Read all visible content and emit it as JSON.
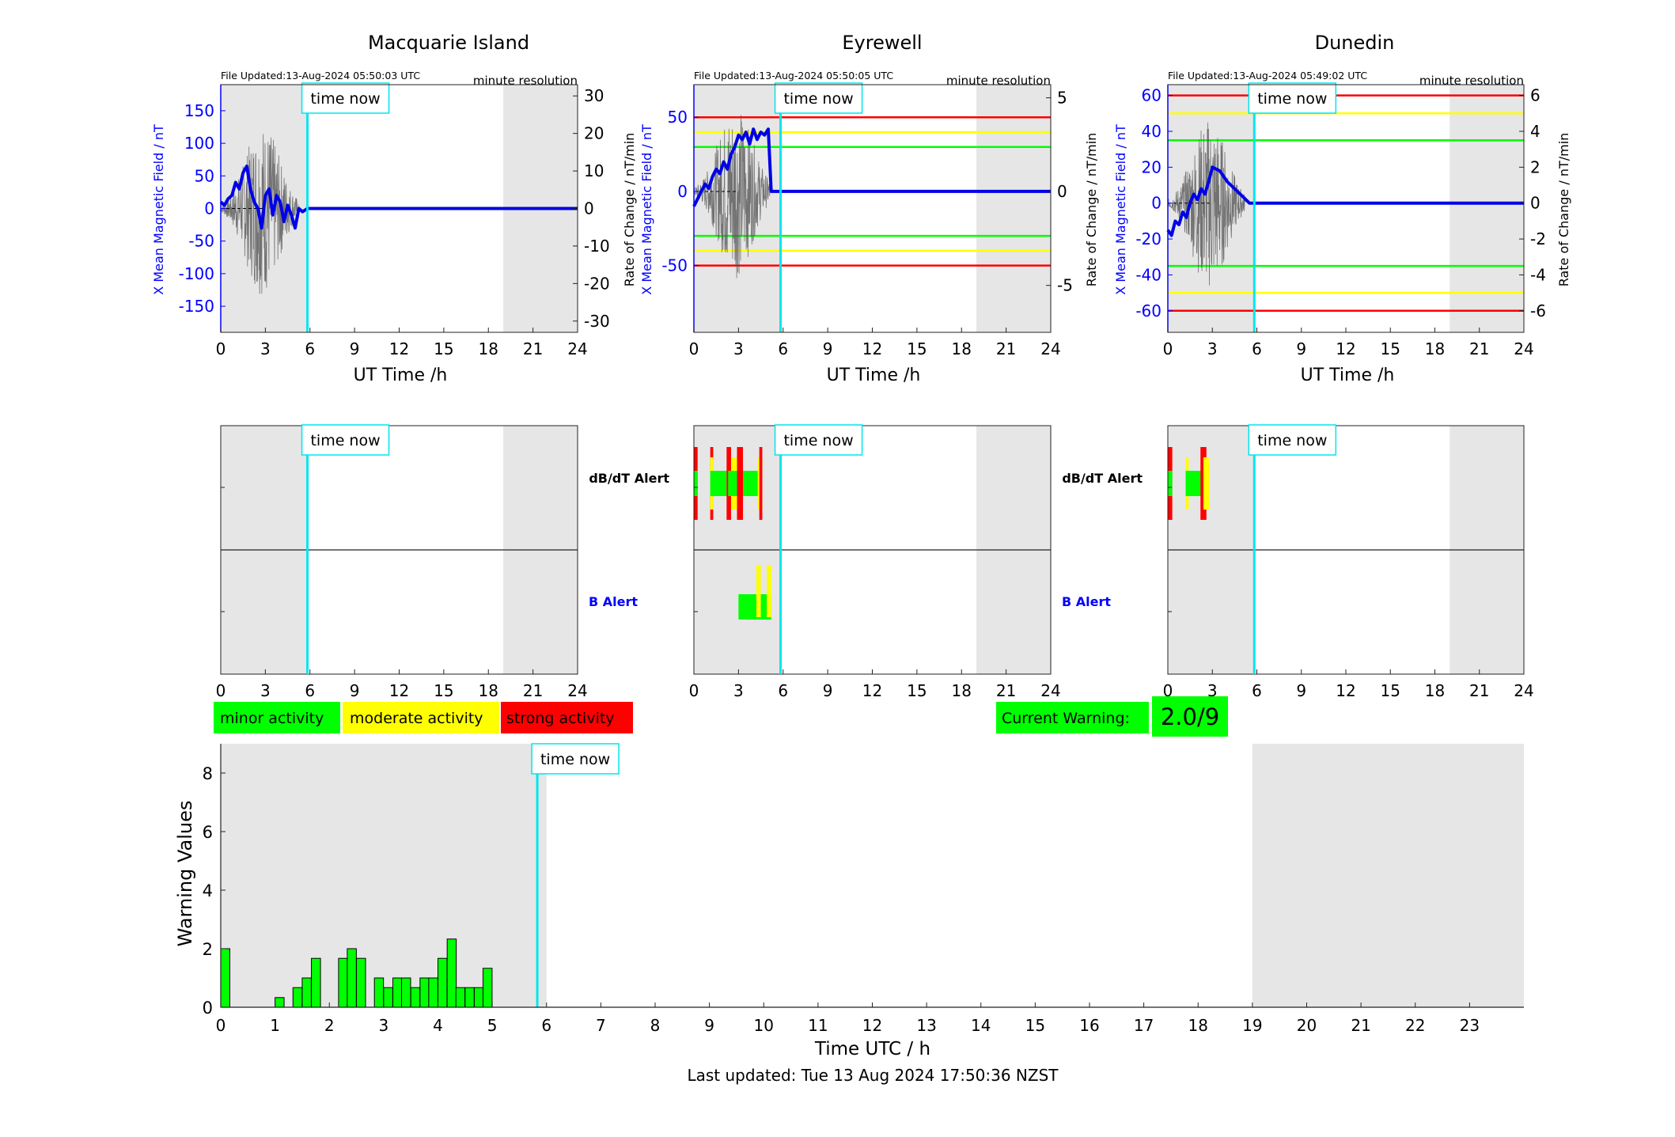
{
  "stations": [
    {
      "name": "Macquarie Island",
      "file_updated": "File Updated:13-Aug-2024 05:50:03 UTC",
      "resolution": "minute resolution",
      "left_axis_label": "X Mean Magnetic Field / nT",
      "right_axis_label": "Rate of Change / nT/min",
      "xlabel": "UT Time /h",
      "time_now_label": "time now"
    },
    {
      "name": "Eyrewell",
      "file_updated": "File Updated:13-Aug-2024 05:50:05 UTC",
      "resolution": "minute resolution",
      "left_axis_label": "X Mean Magnetic Field / nT",
      "right_axis_label": "Rate of Change / nT/min",
      "xlabel": "UT Time /h",
      "time_now_label": "time now"
    },
    {
      "name": "Dunedin",
      "file_updated": "File Updated:13-Aug-2024 05:49:02 UTC",
      "resolution": "minute resolution",
      "left_axis_label": "X Mean Magnetic Field / nT",
      "right_axis_label": "Rate of Change / nT/min",
      "xlabel": "UT Time /h",
      "time_now_label": "time now"
    }
  ],
  "alert_labels": {
    "dbdt": "dB/dT Alert",
    "b": "B Alert"
  },
  "legend": {
    "minor": "minor activity",
    "moderate": "moderate activity",
    "strong": "strong activity"
  },
  "current_warning": {
    "label": "Current Warning:",
    "value": "2.0/9"
  },
  "bottom": {
    "ylabel": "Warning Values",
    "xlabel": "Time UTC / h",
    "time_now_label": "time now"
  },
  "footer": "Last updated: Tue 13 Aug 2024 17:50:36 NZST",
  "colors": {
    "minor": "#00ff00",
    "moderate": "#ffff00",
    "strong": "#ff0000",
    "night_shade": "#e6e6e6",
    "field_line": "#0000e6",
    "time_now": "#00e5ee",
    "axis_blue": "#0000ff"
  },
  "chart_data": [
    {
      "type": "line",
      "station": "Macquarie Island",
      "x_range_h": [
        0,
        24
      ],
      "x_ticks": [
        0,
        3,
        6,
        9,
        12,
        15,
        18,
        21,
        24
      ],
      "left_ylim": [
        -190,
        190
      ],
      "left_ticks": [
        -150,
        -100,
        -50,
        0,
        50,
        100,
        150
      ],
      "right_ylim": [
        -33,
        33
      ],
      "right_ticks": [
        -30,
        -20,
        -10,
        0,
        10,
        20,
        30
      ],
      "thresholds_left": [],
      "time_now_h": 5.83,
      "night_shade_h": [
        [
          0,
          5.83
        ],
        [
          19,
          24
        ]
      ],
      "series": [
        {
          "x": [
            0,
            0.25,
            0.5,
            0.75,
            1.0,
            1.25,
            1.5,
            1.75,
            2.0,
            2.25,
            2.5,
            2.75,
            3.0,
            3.25,
            3.5,
            3.75,
            4.0,
            4.25,
            4.5,
            4.75,
            5.0,
            5.25,
            5.5,
            5.83,
            24
          ],
          "y": [
            10,
            5,
            15,
            20,
            40,
            30,
            55,
            65,
            30,
            10,
            0,
            -30,
            20,
            30,
            -10,
            20,
            10,
            -20,
            5,
            -10,
            -30,
            0,
            -5,
            0,
            0
          ]
        }
      ]
    },
    {
      "type": "line",
      "station": "Eyrewell",
      "x_range_h": [
        0,
        24
      ],
      "x_ticks": [
        0,
        3,
        6,
        9,
        12,
        15,
        18,
        21,
        24
      ],
      "left_ylim": [
        -95,
        72
      ],
      "left_ticks": [
        -50,
        0,
        50
      ],
      "right_ylim": [
        -7.5,
        5.7
      ],
      "right_ticks": [
        -5,
        0,
        5
      ],
      "thresholds_left": [
        {
          "level": 50,
          "color": "#ff0000"
        },
        {
          "level": 40,
          "color": "#ffff00"
        },
        {
          "level": 30,
          "color": "#00ff00"
        },
        {
          "level": -30,
          "color": "#00ff00"
        },
        {
          "level": -40,
          "color": "#ffff00"
        },
        {
          "level": -50,
          "color": "#ff0000"
        }
      ],
      "time_now_h": 5.83,
      "night_shade_h": [
        [
          0,
          5.83
        ],
        [
          19,
          24
        ]
      ],
      "series": [
        {
          "x": [
            0,
            0.25,
            0.5,
            0.75,
            1.0,
            1.25,
            1.5,
            1.75,
            2.0,
            2.25,
            2.5,
            2.75,
            3.0,
            3.25,
            3.5,
            3.75,
            4.0,
            4.25,
            4.5,
            4.75,
            5.0,
            5.2,
            24
          ],
          "y": [
            -10,
            -5,
            0,
            5,
            2,
            10,
            15,
            12,
            20,
            15,
            25,
            30,
            38,
            35,
            40,
            32,
            42,
            35,
            40,
            38,
            42,
            0,
            0
          ]
        }
      ]
    },
    {
      "type": "line",
      "station": "Dunedin",
      "x_range_h": [
        0,
        24
      ],
      "x_ticks": [
        0,
        3,
        6,
        9,
        12,
        15,
        18,
        21,
        24
      ],
      "left_ylim": [
        -72,
        66
      ],
      "left_ticks": [
        -60,
        -40,
        -20,
        0,
        20,
        40,
        60
      ],
      "right_ylim": [
        -7.2,
        6.6
      ],
      "right_ticks": [
        -6,
        -4,
        -2,
        0,
        2,
        4,
        6
      ],
      "thresholds_left": [
        {
          "level": 60,
          "color": "#ff0000"
        },
        {
          "level": 50,
          "color": "#ffff00"
        },
        {
          "level": 35,
          "color": "#00ff00"
        },
        {
          "level": -35,
          "color": "#00ff00"
        },
        {
          "level": -50,
          "color": "#ffff00"
        },
        {
          "level": -60,
          "color": "#ff0000"
        }
      ],
      "time_now_h": 5.83,
      "night_shade_h": [
        [
          0,
          5.83
        ],
        [
          19,
          24
        ]
      ],
      "series": [
        {
          "x": [
            0,
            0.25,
            0.5,
            0.75,
            1.0,
            1.25,
            1.5,
            1.75,
            2.0,
            2.25,
            2.5,
            2.75,
            3.0,
            3.5,
            4.0,
            4.5,
            5.0,
            5.5,
            5.83,
            24
          ],
          "y": [
            -15,
            -18,
            -10,
            -12,
            -5,
            -8,
            0,
            5,
            2,
            8,
            5,
            12,
            20,
            18,
            12,
            8,
            4,
            0,
            0,
            0
          ]
        }
      ]
    },
    {
      "type": "bar",
      "title": "",
      "xlabel": "Time UTC / h",
      "ylabel": "Warning Values",
      "x_range": [
        0,
        24
      ],
      "x_ticks": [
        0,
        1,
        2,
        3,
        4,
        5,
        6,
        7,
        8,
        9,
        10,
        11,
        12,
        13,
        14,
        15,
        16,
        17,
        18,
        19,
        20,
        21,
        22,
        23
      ],
      "ylim": [
        0,
        9
      ],
      "y_ticks": [
        0,
        2,
        4,
        6,
        8
      ],
      "time_now_h": 5.83,
      "night_shade_h": [
        [
          0,
          6
        ],
        [
          19,
          24
        ]
      ],
      "bar_width_h": 0.167,
      "x": [
        0.0,
        1.0,
        1.33,
        1.5,
        1.67,
        2.17,
        2.33,
        2.5,
        2.83,
        3.0,
        3.17,
        3.33,
        3.5,
        3.67,
        3.83,
        4.0,
        4.17,
        4.33,
        4.5,
        4.67,
        4.83
      ],
      "values": [
        2.0,
        0.33,
        0.67,
        1.0,
        1.67,
        1.67,
        2.0,
        1.67,
        1.0,
        0.67,
        1.0,
        1.0,
        0.67,
        1.0,
        1.0,
        1.67,
        2.33,
        0.67,
        0.67,
        0.67,
        1.33
      ]
    }
  ]
}
